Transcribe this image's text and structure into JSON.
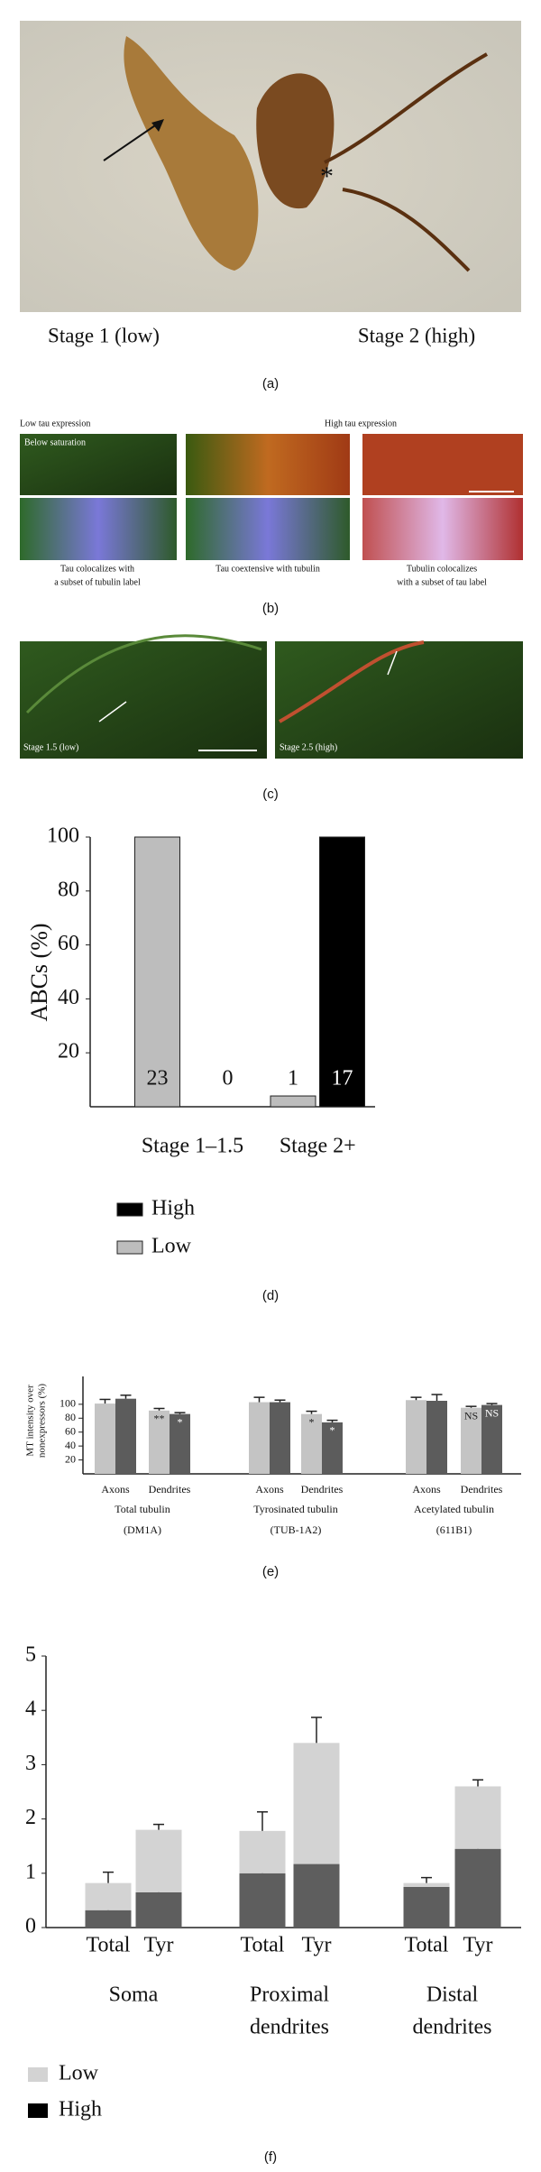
{
  "figure": {
    "panel_labels": [
      "(a)",
      "(b)",
      "(c)",
      "(d)",
      "(e)",
      "(f)"
    ],
    "a": {
      "labels": [
        "Stage 1 (low)",
        "Stage 2 (high)"
      ],
      "asterisk": "*"
    },
    "b": {
      "headers": [
        "Low tau expression",
        "High tau expression"
      ],
      "inset": "Below saturation",
      "captions": [
        [
          "Tau colocalizes with",
          "a subset of tubulin label"
        ],
        [
          "Tau coextensive with tubulin"
        ],
        [
          "Tubulin colocalizes",
          "with a subset of tau label"
        ]
      ]
    },
    "c": {
      "labels": [
        "Stage 1.5 (low)",
        "Stage 2.5 (high)"
      ]
    }
  },
  "chart_data": [
    {
      "type": "bar",
      "ylabel": "ABCs (%)",
      "categories": [
        "Stage 1–1.5",
        "Stage 2+"
      ],
      "series": [
        {
          "name": "Low",
          "color": "#bdbdbd",
          "values": [
            100,
            4
          ],
          "counts": [
            23,
            1
          ]
        },
        {
          "name": "High",
          "color": "#000000",
          "values": [
            0,
            100
          ],
          "counts": [
            0,
            17
          ]
        }
      ],
      "ylim": [
        0,
        100
      ],
      "yticks": [
        20,
        40,
        60,
        80,
        100
      ],
      "legend_order": [
        1,
        0
      ]
    },
    {
      "type": "bar",
      "ylabel": [
        "MT intensity over",
        "nonexpressors (%)"
      ],
      "categories": [
        "Axons",
        "Dendrites",
        "Axons",
        "Dendrites",
        "Axons",
        "Dendrites"
      ],
      "groups": [
        [
          "Total tubulin",
          "(DM1A)"
        ],
        [
          "Tyrosinated tubulin",
          "(TUB-1A2)"
        ],
        [
          "Acetylated tubulin",
          "(611B1)"
        ]
      ],
      "series": [
        {
          "color": "#c4c4c4",
          "values": [
            101,
            91,
            103,
            86,
            106,
            95
          ],
          "errors": [
            6,
            3,
            7,
            4,
            4,
            2
          ],
          "notes": [
            null,
            "**",
            null,
            "*",
            null,
            "NS"
          ]
        },
        {
          "color": "#5c5c5c",
          "values": [
            108,
            86,
            103,
            74,
            105,
            99
          ],
          "errors": [
            5,
            2,
            3,
            3,
            9,
            2
          ],
          "notes": [
            null,
            "*",
            null,
            "*",
            null,
            "NS"
          ]
        }
      ],
      "ylim": [
        0,
        140
      ],
      "yticks": [
        20,
        40,
        60,
        80,
        100
      ]
    },
    {
      "type": "stacked_bar",
      "categories": [
        "Total",
        "Tyr",
        "Total",
        "Tyr",
        "Total",
        "Tyr"
      ],
      "groups": [
        [
          "Soma"
        ],
        [
          "Proximal",
          "dendrites"
        ],
        [
          "Distal",
          "dendrites"
        ]
      ],
      "series": [
        {
          "name": "Low",
          "color": "#d3d3d3",
          "values": [
            0.5,
            1.15,
            0.78,
            2.23,
            0.07,
            1.15
          ],
          "errors": [
            0.2,
            0.1,
            0.35,
            0.47,
            0.1,
            0.12
          ]
        },
        {
          "name": "High",
          "color": "#5e5e5e",
          "values": [
            0.32,
            0.65,
            1.0,
            1.17,
            0.75,
            1.45
          ],
          "errors": [
            0.07,
            0.15,
            0.12,
            0.18,
            0.0,
            0.1
          ]
        }
      ],
      "ylim": [
        0,
        5
      ],
      "yticks": [
        0,
        1,
        2,
        3,
        4,
        5
      ]
    }
  ]
}
